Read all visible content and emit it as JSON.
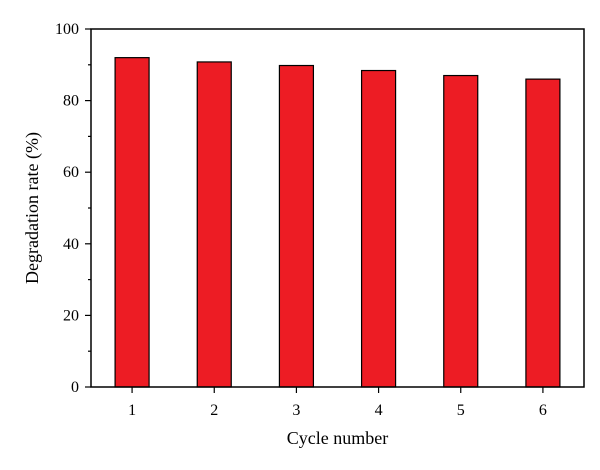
{
  "chart_data": {
    "type": "bar",
    "title": "",
    "xlabel": "Cycle number",
    "ylabel": "Degradation rate (%)",
    "categories": [
      "1",
      "2",
      "3",
      "4",
      "5",
      "6"
    ],
    "values": [
      92,
      90.8,
      89.8,
      88.4,
      87,
      86
    ],
    "ylim": [
      0,
      100
    ],
    "yticks": [
      "0",
      "20",
      "40",
      "60",
      "80",
      "100"
    ],
    "grid": false,
    "legend": "none",
    "colors": {
      "bar_fill": "#ed1c24",
      "bar_stroke": "#000000",
      "axis": "#000000"
    }
  }
}
